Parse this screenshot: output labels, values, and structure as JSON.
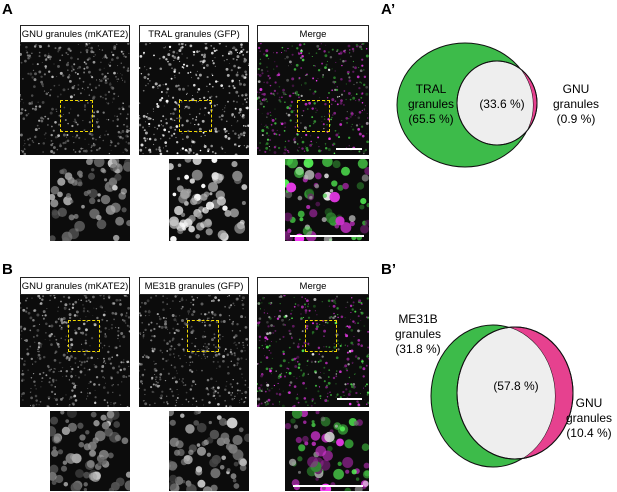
{
  "panels": {
    "A": {
      "letter": "A",
      "labels": [
        "GNU granules (mKATE2)",
        "TRAL granules (GFP)",
        "Merge"
      ]
    },
    "A_prime": {
      "letter": "A’",
      "left_label_line1": "TRAL",
      "left_label_line2": "granules",
      "left_label_line3": "(65.5 %)",
      "center_label": "(33.6 %)",
      "right_label_line1": "GNU",
      "right_label_line2": "granules",
      "right_label_line3": "(0.9 %)",
      "values": {
        "tral_only_pct": 65.5,
        "overlap_pct": 33.6,
        "gnu_only_pct": 0.9
      }
    },
    "B": {
      "letter": "B",
      "labels": [
        "GNU granules (mKATE2)",
        "ME31B granules (GFP)",
        "Merge"
      ]
    },
    "B_prime": {
      "letter": "B’",
      "left_label_line1": "ME31B",
      "left_label_line2": "granules",
      "left_label_line3": "(31.8 %)",
      "center_label": "(57.8 %)",
      "right_label_line1": "GNU",
      "right_label_line2": "granules",
      "right_label_line3": "(10.4 %)",
      "values": {
        "me31b_only_pct": 31.8,
        "overlap_pct": 57.8,
        "gnu_only_pct": 10.4
      }
    }
  },
  "colors": {
    "green": "#3dbb4a",
    "magenta": "#e6418f",
    "overlap": "#eeeeee",
    "roi_box": "#f0d800",
    "scale_bar": "#ffffff"
  }
}
